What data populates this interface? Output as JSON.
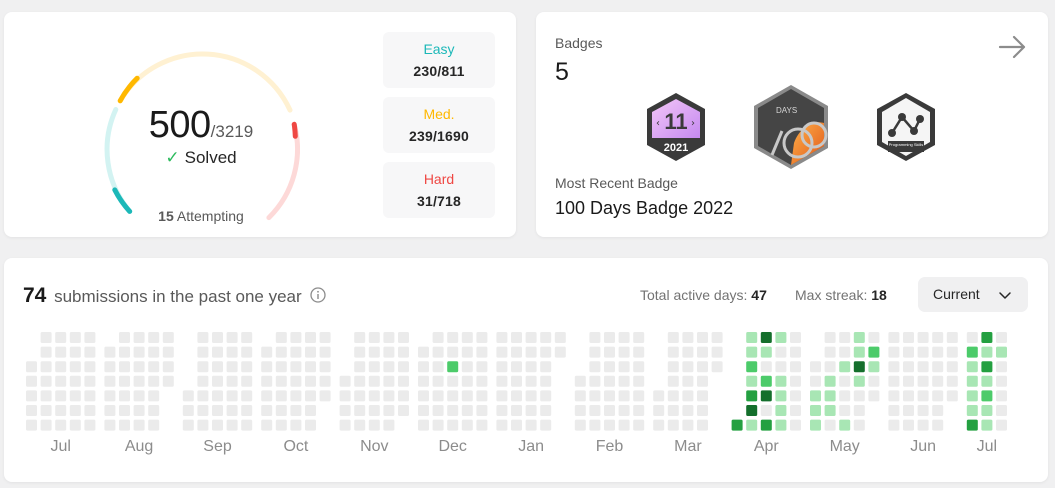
{
  "progress": {
    "solved": "500",
    "total": "/3219",
    "solved_label": "Solved",
    "attempting_count": "15",
    "attempting_label": "Attempting",
    "difficulty": [
      {
        "name": "Easy",
        "count": "230/811",
        "color": "#1cb8b8"
      },
      {
        "name": "Med.",
        "count": "239/1690",
        "color": "#ffb800"
      },
      {
        "name": "Hard",
        "count": "31/718",
        "color": "#ef4743"
      }
    ]
  },
  "badges": {
    "label": "Badges",
    "count": "5",
    "items": [
      {
        "icon": "annual-badge-2021-icon",
        "text": "11",
        "year": "2021"
      },
      {
        "icon": "100-days-badge-icon",
        "text": "DAYS"
      },
      {
        "icon": "programming-skills-badge-icon",
        "text": "Programming Skills"
      }
    ],
    "recent_label": "Most Recent Badge",
    "recent_name": "100 Days Badge 2022"
  },
  "submissions": {
    "count": "74",
    "title": "submissions in the past one year",
    "active_days_label": "Total active days:",
    "active_days": "47",
    "max_streak_label": "Max streak:",
    "max_streak": "18",
    "dropdown_value": "Current",
    "months": [
      "Jul",
      "Aug",
      "Sep",
      "Oct",
      "Nov",
      "Dec",
      "Jan",
      "Feb",
      "Mar",
      "Apr",
      "May",
      "Jun",
      "Jul"
    ],
    "colors": {
      "empty": "#ebebeb",
      "level1": "#a8e6b4",
      "level2": "#4ccb6a",
      "level3": "#24a041",
      "level4": "#146f2c"
    }
  }
}
